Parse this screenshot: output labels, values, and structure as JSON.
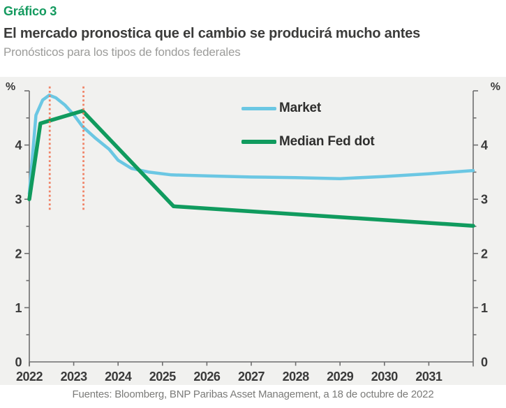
{
  "header": {
    "kicker": "Gráfico 3",
    "title": "El mercado pronostica que el cambio se producirá mucho antes",
    "subtitle": "Pronósticos para los tipos de fondos federales"
  },
  "footer": {
    "source": "Fuentes: Bloomberg, BNP Paribas Asset Management, a 18 de octubre de 2022"
  },
  "chart_data": {
    "type": "line",
    "title": "El mercado pronostica que el cambio se producirá mucho antes",
    "subtitle": "Pronósticos para los tipos de fondos federales",
    "unit_label_left": "%",
    "unit_label_right": "%",
    "xlim": [
      2022,
      2032
    ],
    "ylim": [
      0,
      5
    ],
    "x_ticks": [
      2022,
      2023,
      2024,
      2025,
      2026,
      2027,
      2028,
      2029,
      2030,
      2031
    ],
    "y_major_ticks": [
      0,
      1,
      2,
      3,
      4
    ],
    "y_minor_step": 0.5,
    "grid": false,
    "legend_position": "inside-top-center",
    "background_color": "#f1f1ef",
    "axis_color": "#6e6e6e",
    "tick_label_color": "#3a3a3a",
    "vlines": [
      {
        "x": 2022.46,
        "y_from": 2.8,
        "y_to": 5.08,
        "style": "dotted",
        "color": "#f0795a"
      },
      {
        "x": 2023.22,
        "y_from": 2.8,
        "y_to": 5.08,
        "style": "dotted",
        "color": "#f0795a"
      }
    ],
    "series": [
      {
        "name": "Market",
        "color": "#6bc7e3",
        "width": 4.5,
        "points": [
          [
            2022.0,
            3.1
          ],
          [
            2022.15,
            4.55
          ],
          [
            2022.3,
            4.83
          ],
          [
            2022.45,
            4.92
          ],
          [
            2022.6,
            4.87
          ],
          [
            2022.8,
            4.74
          ],
          [
            2023.0,
            4.56
          ],
          [
            2023.2,
            4.34
          ],
          [
            2023.5,
            4.12
          ],
          [
            2023.8,
            3.92
          ],
          [
            2024.0,
            3.72
          ],
          [
            2024.3,
            3.57
          ],
          [
            2024.7,
            3.5
          ],
          [
            2025.2,
            3.45
          ],
          [
            2026.0,
            3.43
          ],
          [
            2027.0,
            3.41
          ],
          [
            2028.0,
            3.4
          ],
          [
            2029.0,
            3.38
          ],
          [
            2030.0,
            3.42
          ],
          [
            2031.0,
            3.47
          ],
          [
            2032.0,
            3.53
          ]
        ]
      },
      {
        "name": "Median Fed dot",
        "color": "#109b5e",
        "width": 5.5,
        "points": [
          [
            2022.0,
            3.0
          ],
          [
            2022.25,
            4.4
          ],
          [
            2023.2,
            4.63
          ],
          [
            2025.25,
            2.87
          ],
          [
            2032.0,
            2.51
          ]
        ]
      }
    ]
  }
}
